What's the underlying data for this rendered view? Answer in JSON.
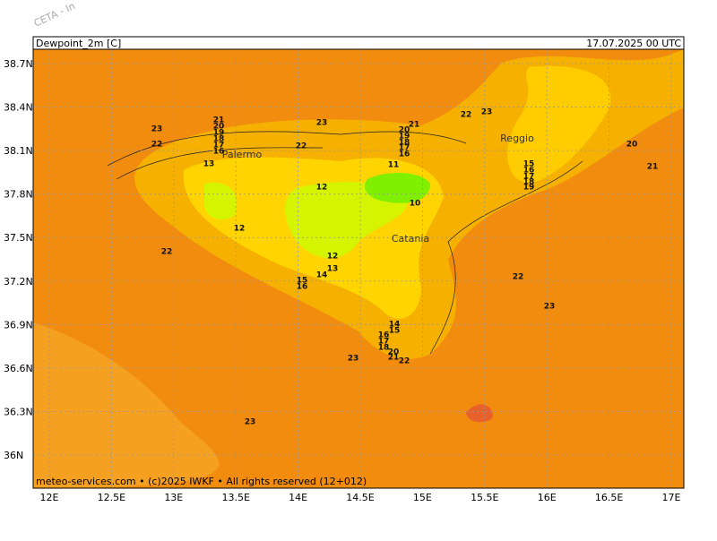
{
  "map": {
    "watermark": "CETA - In",
    "title": "Dewpoint_2m [C]",
    "valid_time": "17.07.2025 00 UTC",
    "lat_ticks": [
      {
        "value": 38.7,
        "label": "38.7N"
      },
      {
        "value": 38.4,
        "label": "38.4N"
      },
      {
        "value": 38.1,
        "label": "38.1N"
      },
      {
        "value": 37.8,
        "label": "37.8N"
      },
      {
        "value": 37.5,
        "label": "37.5N"
      },
      {
        "value": 37.2,
        "label": "37.2N"
      },
      {
        "value": 36.9,
        "label": "36.9N"
      },
      {
        "value": 36.6,
        "label": "36.6N"
      },
      {
        "value": 36.3,
        "label": "36.3N"
      },
      {
        "value": 36,
        "label": "36N"
      }
    ],
    "lon_ticks": [
      {
        "value": 12,
        "label": "12E"
      },
      {
        "value": 12.5,
        "label": "12.5E"
      },
      {
        "value": 13,
        "label": "13E"
      },
      {
        "value": 13.5,
        "label": "13.5E"
      },
      {
        "value": 14,
        "label": "14E"
      },
      {
        "value": 14.5,
        "label": "14.5E"
      },
      {
        "value": 15,
        "label": "15E"
      },
      {
        "value": 15.5,
        "label": "15.5E"
      },
      {
        "value": 16,
        "label": "16E"
      },
      {
        "value": 16.5,
        "label": "16.5E"
      },
      {
        "value": 17,
        "label": "17E"
      }
    ],
    "places": [
      "Palermo",
      "Catania",
      "Reggio"
    ],
    "contour_labels": [
      23,
      22,
      13,
      21,
      20,
      19,
      18,
      17,
      16,
      23,
      22,
      12,
      12,
      22,
      12,
      13,
      14,
      15,
      16,
      11,
      10,
      20,
      19,
      18,
      17,
      16,
      21,
      22,
      23,
      20,
      21,
      15,
      16,
      17,
      18,
      19,
      22,
      23,
      14,
      15,
      16,
      17,
      18,
      20,
      21,
      22,
      23,
      23
    ],
    "footer": "meteo-services.com • (c)2025 IWKF • All rights reserved (12+012)"
  }
}
